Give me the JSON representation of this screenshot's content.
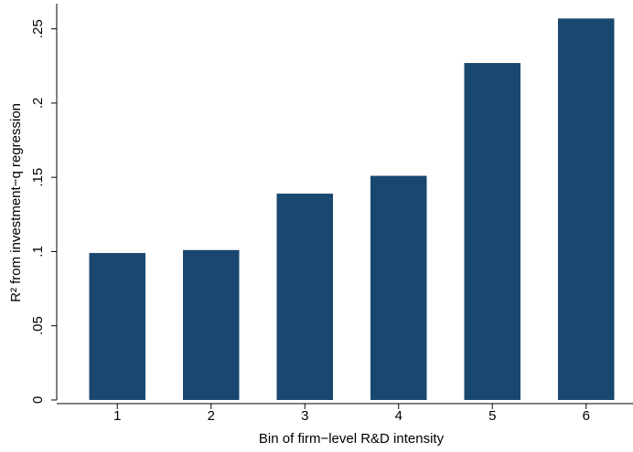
{
  "chart_data": {
    "type": "bar",
    "x_label": "Bin of firm−level R&D intensity",
    "y_label": "R² from investment−q regression",
    "categories": [
      "1",
      "2",
      "3",
      "4",
      "5",
      "6"
    ],
    "values": [
      0.099,
      0.101,
      0.139,
      0.151,
      0.227,
      0.257
    ],
    "color": "#1a476f",
    "ylim": [
      0,
      0.267
    ],
    "yticks": [
      0,
      {
        "value": 0.05,
        "label": ".05"
      },
      {
        "value": 0.1,
        "label": ".1"
      },
      {
        "value": 0.15,
        "label": ".15"
      },
      {
        "value": 0.2,
        "label": ".2"
      },
      {
        "value": 0.25,
        "label": ".25"
      }
    ],
    "grid": false
  }
}
